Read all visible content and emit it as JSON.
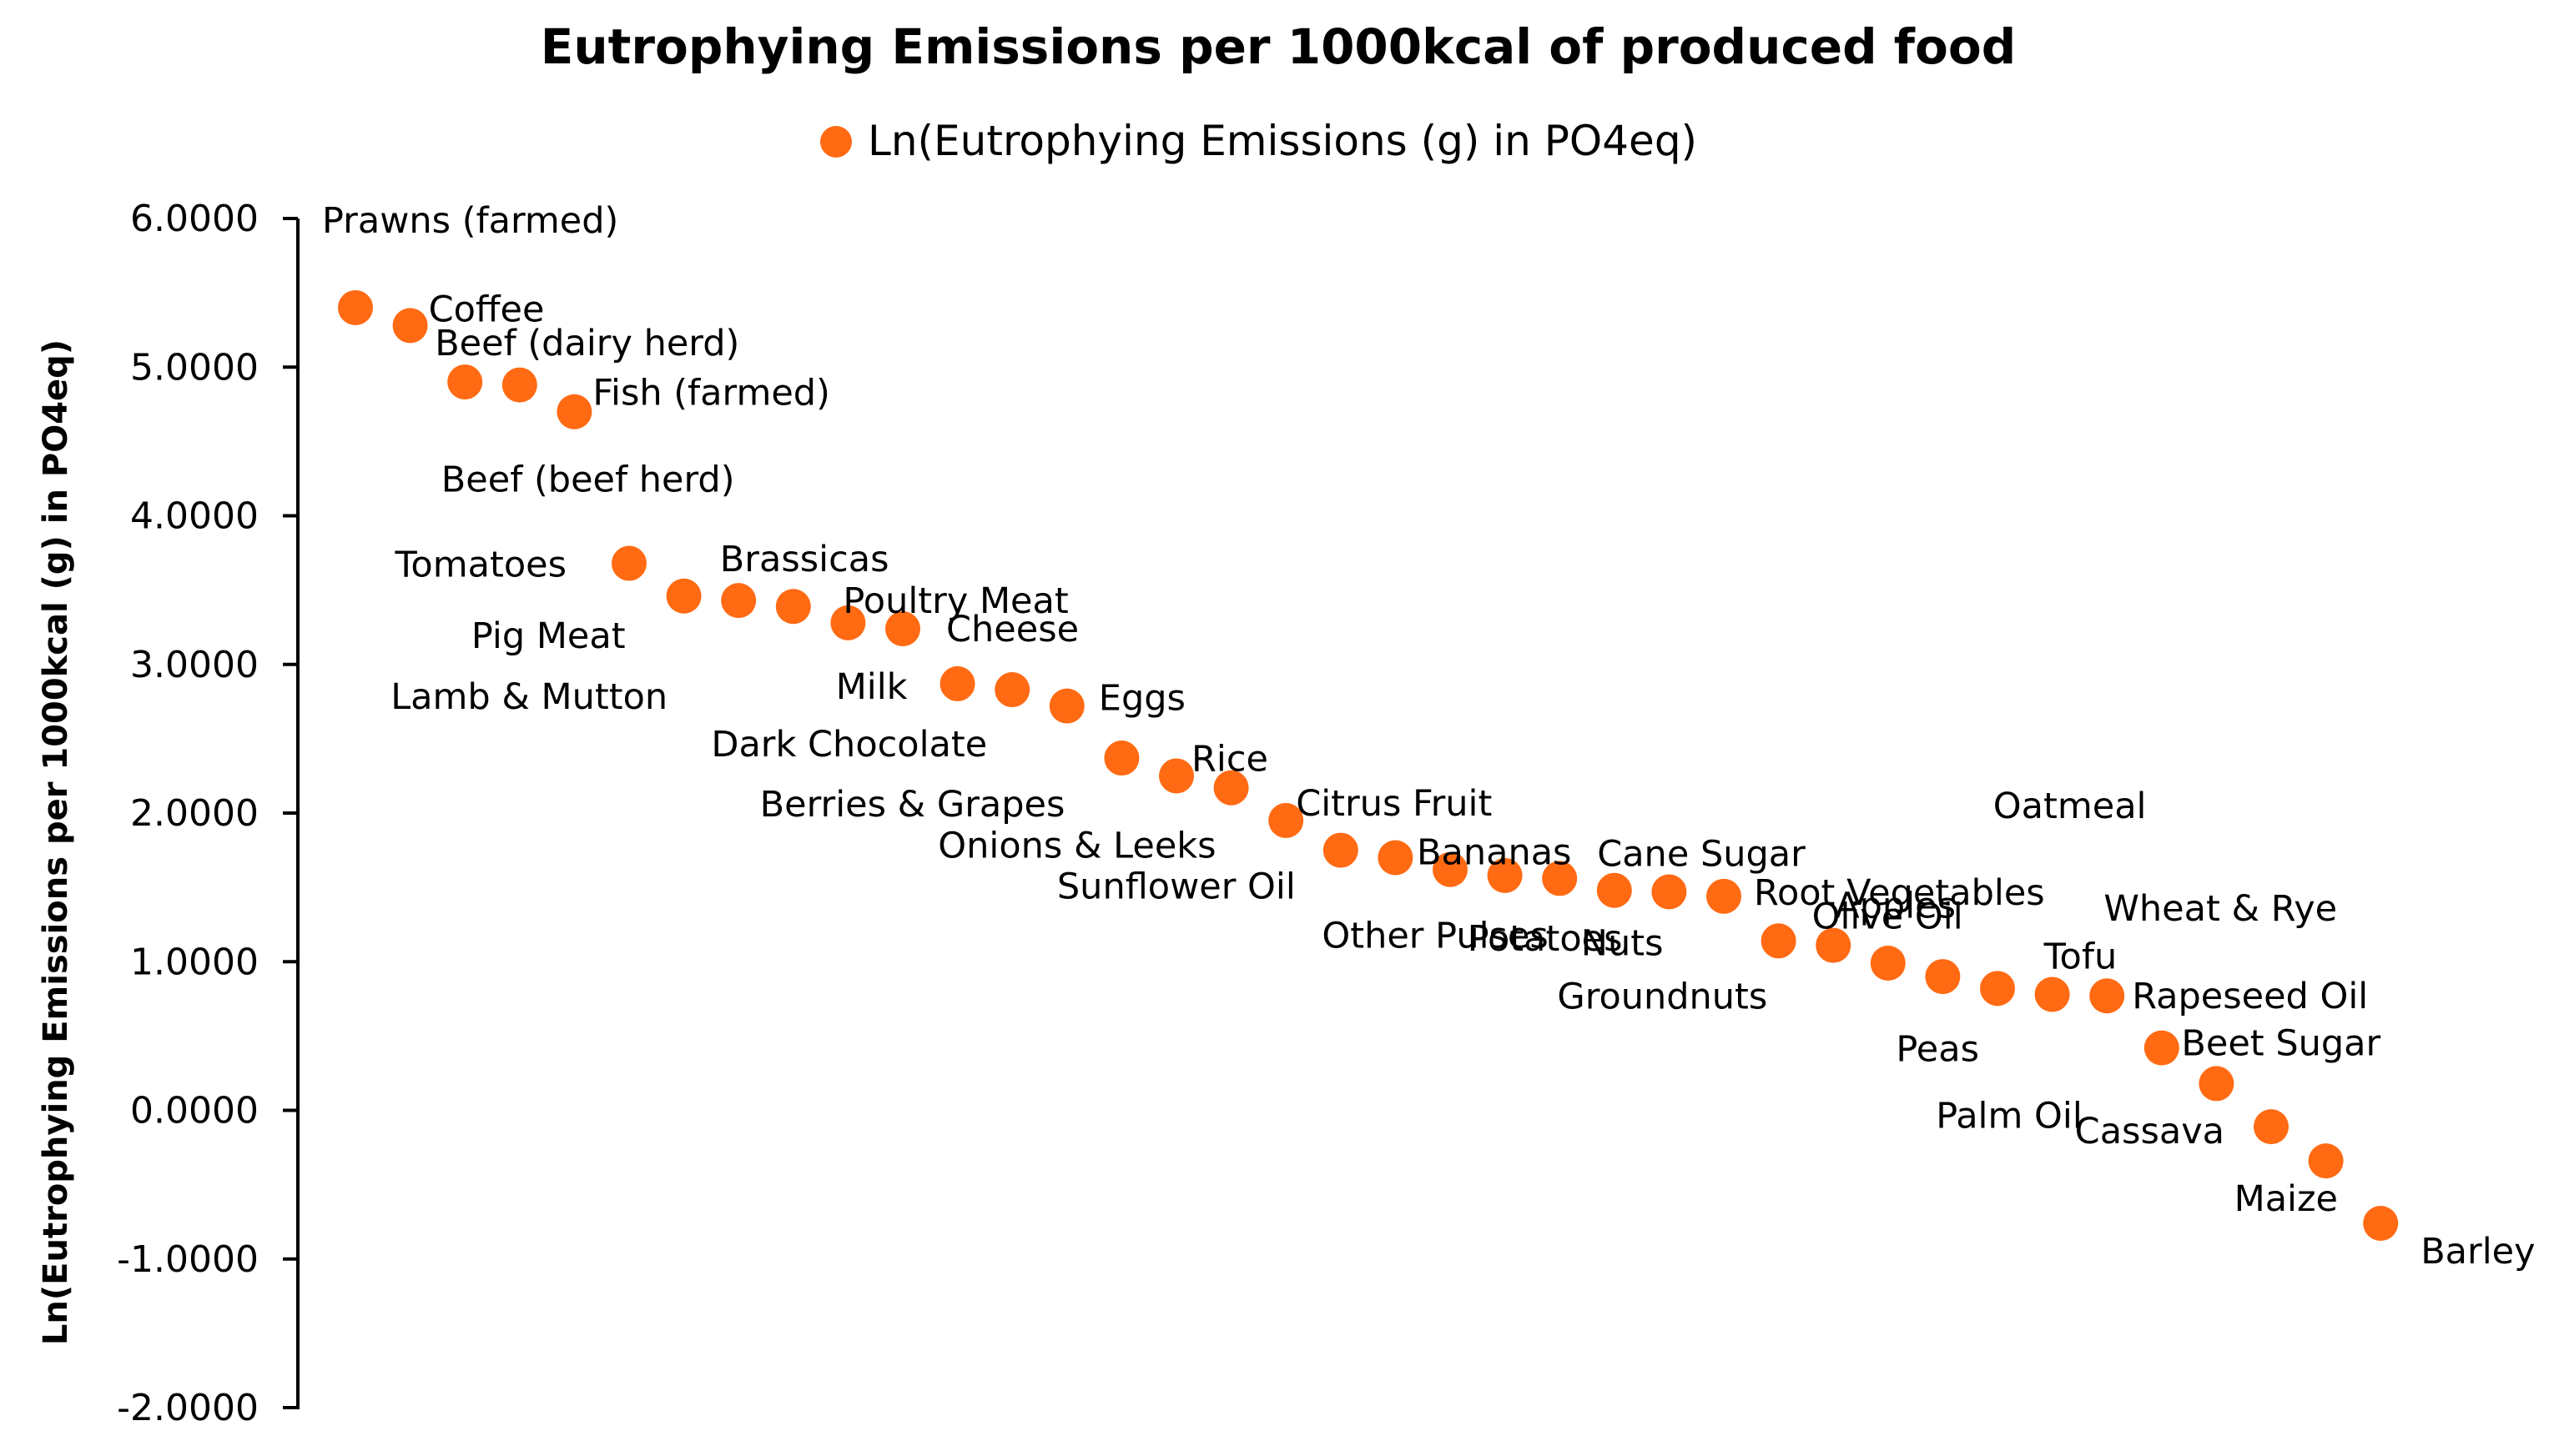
{
  "chart_data": {
    "type": "scatter",
    "title": "Eutrophying Emissions per 1000kcal of produced food",
    "legend": "Ln(Eutrophying Emissions (g) in PO4eq)",
    "ylabel": "Ln(Eutrophying Emissions per 1000kcal (g) in PO4eq)",
    "xlabel": "",
    "ylim": [
      -2,
      6
    ],
    "yticks": [
      "6.0000",
      "5.0000",
      "4.0000",
      "3.0000",
      "2.0000",
      "1.0000",
      "0.0000",
      "-1.0000",
      "-2.0000"
    ],
    "marker_color": "#ff6a13",
    "points": [
      {
        "label": "Prawns (farmed)",
        "y": 5.4
      },
      {
        "label": "Coffee",
        "y": 5.28
      },
      {
        "label": "Beef (dairy herd)",
        "y": 4.9
      },
      {
        "label": "Beef (beef herd)",
        "y": 4.88
      },
      {
        "label": "Fish (farmed)",
        "y": 4.7
      },
      {
        "label": "Tomatoes",
        "y": 3.68
      },
      {
        "label": "Pig Meat",
        "y": 3.46
      },
      {
        "label": "Lamb & Mutton",
        "y": 3.43
      },
      {
        "label": "Brassicas",
        "y": 3.39
      },
      {
        "label": "Poultry Meat",
        "y": 3.28
      },
      {
        "label": "Cheese",
        "y": 3.24
      },
      {
        "label": "Milk",
        "y": 2.87
      },
      {
        "label": "Dark Chocolate",
        "y": 2.83
      },
      {
        "label": "Eggs",
        "y": 2.72
      },
      {
        "label": "Berries & Grapes",
        "y": 2.37
      },
      {
        "label": "Rice",
        "y": 2.25
      },
      {
        "label": "Onions & Leeks",
        "y": 2.17
      },
      {
        "label": "Citrus Fruit",
        "y": 1.95
      },
      {
        "label": "Sunflower Oil",
        "y": 1.75
      },
      {
        "label": "Other Pulses",
        "y": 1.7
      },
      {
        "label": "Bananas",
        "y": 1.62
      },
      {
        "label": "Potatoes",
        "y": 1.58
      },
      {
        "label": "Cane Sugar",
        "y": 1.56
      },
      {
        "label": "Nuts",
        "y": 1.48
      },
      {
        "label": "Groundnuts",
        "y": 1.47
      },
      {
        "label": "Root Vegetables",
        "y": 1.44
      },
      {
        "label": "Olive Oil",
        "y": 1.14
      },
      {
        "label": "Apples",
        "y": 1.11
      },
      {
        "label": "Oatmeal",
        "y": 0.99
      },
      {
        "label": "Wheat & Rye",
        "y": 0.9
      },
      {
        "label": "Peas",
        "y": 0.82
      },
      {
        "label": "Tofu",
        "y": 0.78
      },
      {
        "label": "Rapeseed Oil",
        "y": 0.77
      },
      {
        "label": "Palm Oil",
        "y": 0.42
      },
      {
        "label": "Beet Sugar",
        "y": 0.18
      },
      {
        "label": "Cassava",
        "y": -0.11
      },
      {
        "label": "Maize",
        "y": -0.34
      },
      {
        "label": "Barley",
        "y": -0.76
      }
    ]
  }
}
